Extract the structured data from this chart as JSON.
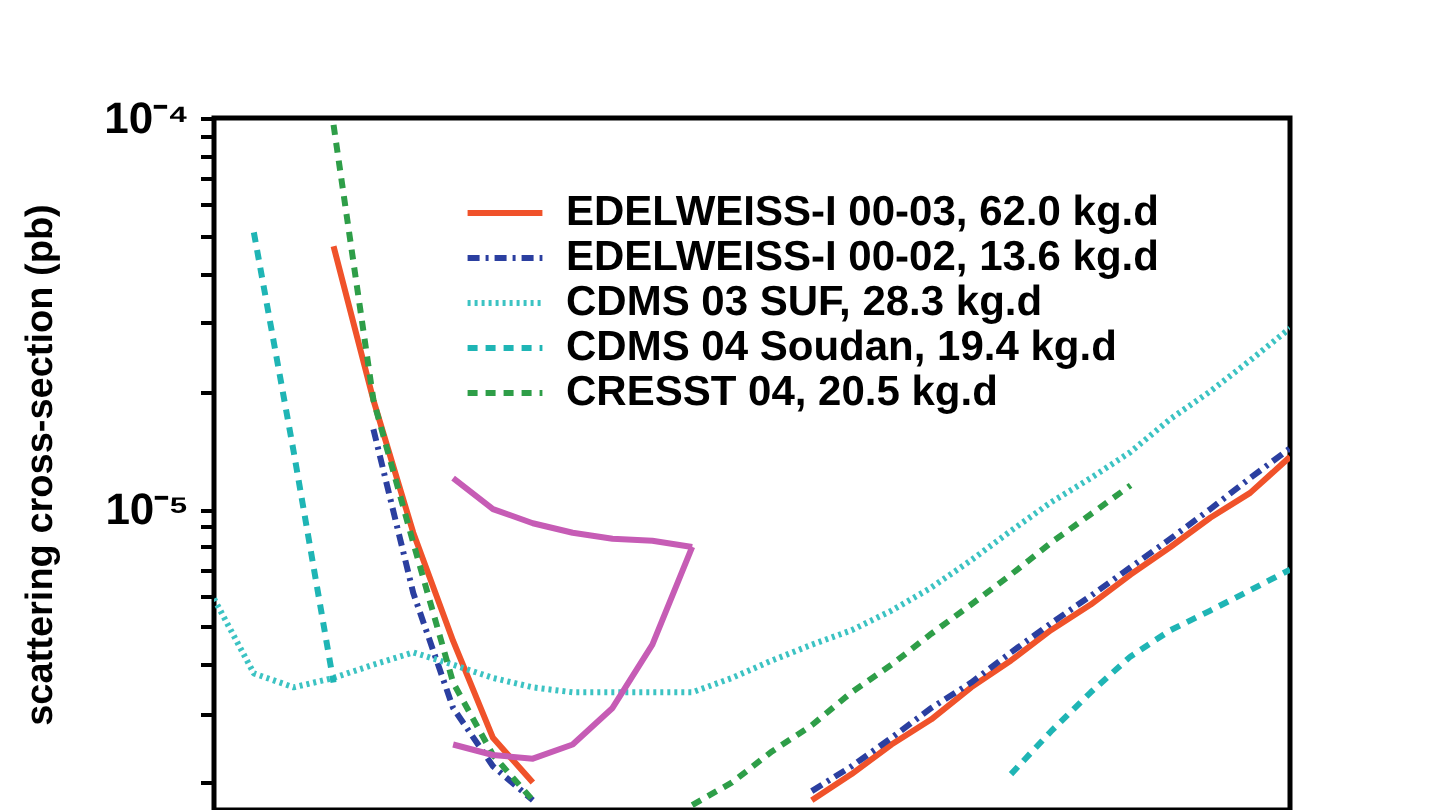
{
  "chart_data": {
    "type": "line",
    "ylabel": "scattering cross-section (pb)",
    "log": "y",
    "legend": "top right",
    "tick_labels": "y",
    "grid": false,
    "categories": [
      null,
      null,
      null,
      null,
      null,
      null,
      null,
      null,
      null,
      null,
      null,
      null,
      null,
      null,
      null,
      null,
      null,
      null,
      null,
      null,
      null,
      null,
      null,
      null,
      null,
      null,
      null,
      null
    ],
    "ylim": [
      1.7e-06,
      0.0001
    ],
    "yticks": [
      {
        "value": 0.0001,
        "label": "10⁻⁴"
      },
      {
        "value": 9e-05,
        "label": null
      },
      {
        "value": 8e-05,
        "label": null
      },
      {
        "value": 7e-05,
        "label": null
      },
      {
        "value": 6e-05,
        "label": null
      },
      {
        "value": 5e-05,
        "label": null
      },
      {
        "value": 4e-05,
        "label": null
      },
      {
        "value": 3e-05,
        "label": null
      },
      {
        "value": 2e-05,
        "label": null
      },
      {
        "value": 1e-05,
        "label": "10⁻⁵"
      },
      {
        "value": 9e-06,
        "label": null
      },
      {
        "value": 8e-06,
        "label": null
      },
      {
        "value": 7e-06,
        "label": null
      },
      {
        "value": 6e-06,
        "label": null
      },
      {
        "value": 5e-06,
        "label": null
      },
      {
        "value": 4e-06,
        "label": null
      },
      {
        "value": 3e-06,
        "label": null
      },
      {
        "value": 2e-06,
        "label": null
      }
    ],
    "series": [
      {
        "name": "EDELWEISS-I 00-03, 62.0 kg.d",
        "color": "#f0522a",
        "line_style": "solid",
        "values": [
          null,
          null,
          null,
          4.7e-05,
          1.9e-05,
          8.7e-06,
          4.6e-06,
          2.6e-06,
          2e-06,
          null,
          null,
          null,
          null,
          null,
          null,
          1.8e-06,
          2.1e-06,
          2.5e-06,
          2.9e-06,
          3.5e-06,
          4.1e-06,
          4.9e-06,
          5.7e-06,
          6.8e-06,
          8e-06,
          9.5e-06,
          1.1e-05,
          1.36e-05
        ]
      },
      {
        "name": "EDELWEISS-I 00-02, 13.6 kg.d",
        "color": "#2b3fa0",
        "line_style": "dashdot",
        "values": [
          null,
          null,
          null,
          null,
          1.6e-05,
          6.1e-06,
          3.1e-06,
          2.2e-06,
          1.8e-06,
          null,
          null,
          null,
          null,
          null,
          null,
          1.9e-06,
          2.2e-06,
          2.6e-06,
          3.1e-06,
          3.6e-06,
          4.3e-06,
          5.1e-06,
          6e-06,
          7.1e-06,
          8.4e-06,
          1e-05,
          1.2e-05,
          1.43e-05
        ]
      },
      {
        "name": "CDMS 03 SUF, 28.3 kg.d",
        "color": "#3cc3c3",
        "line_style": "dotted",
        "values": [
          5.9e-06,
          3.8e-06,
          3.5e-06,
          3.7e-06,
          4e-06,
          4.3e-06,
          4e-06,
          3.7e-06,
          3.5e-06,
          3.4e-06,
          3.4e-06,
          3.4e-06,
          3.4e-06,
          3.7e-06,
          4.1e-06,
          4.5e-06,
          4.9e-06,
          5.5e-06,
          6.3e-06,
          7.4e-06,
          8.8e-06,
          1.04e-05,
          1.2e-05,
          1.4e-05,
          1.7e-05,
          2e-05,
          2.4e-05,
          2.9e-05
        ]
      },
      {
        "name": "CDMS 04 Soudan, 19.4 kg.d",
        "color": "#1fb5b5",
        "line_style": "dashed",
        "values": [
          null,
          5.1e-05,
          1.4e-05,
          3.6e-06,
          null,
          null,
          null,
          null,
          null,
          null,
          null,
          null,
          null,
          null,
          null,
          null,
          null,
          null,
          null,
          null,
          2.1e-06,
          2.7e-06,
          3.4e-06,
          4.2e-06,
          4.9e-06,
          5.5e-06,
          6.2e-06,
          7e-06
        ]
      },
      {
        "name": "CRESST 04, 20.5 kg.d",
        "color": "#2e9e48",
        "line_style": "dashed",
        "values": [
          null,
          null,
          null,
          9.6e-05,
          1.9e-05,
          8.2e-06,
          3.6e-06,
          2.35e-06,
          1.8e-06,
          null,
          null,
          null,
          1.75e-06,
          2e-06,
          2.4e-06,
          2.8e-06,
          3.4e-06,
          4e-06,
          4.8e-06,
          5.7e-06,
          6.8e-06,
          8.2e-06,
          9.7e-06,
          1.15e-05,
          null,
          null,
          null,
          null
        ]
      },
      {
        "color": "#c65cb5",
        "line_style": "solid",
        "values": [
          null,
          null,
          null,
          null,
          null,
          null,
          1.2e-05,
          1e-05,
          9.2e-06,
          8.7e-06,
          8.4e-06,
          8.3e-06,
          8e-06,
          null,
          null,
          null,
          null,
          null,
          null,
          null,
          null,
          null,
          null,
          null,
          null,
          null,
          null,
          null
        ]
      },
      {
        "color": "#c65cb5",
        "line_style": "solid",
        "values": [
          null,
          null,
          null,
          null,
          null,
          null,
          2.5e-06,
          2.35e-06,
          2.3e-06,
          2.5e-06,
          3.1e-06,
          4.5e-06,
          8e-06,
          null,
          null,
          null,
          null,
          null,
          null,
          null,
          null,
          null,
          null,
          null,
          null,
          null,
          null,
          null
        ]
      }
    ]
  }
}
